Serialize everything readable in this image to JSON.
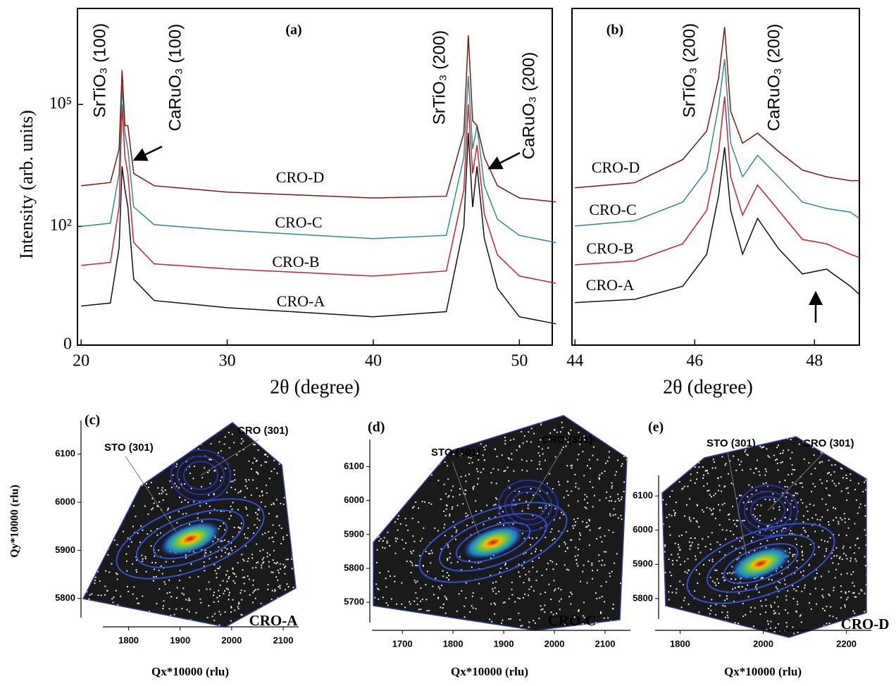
{
  "chart_data": [
    {
      "type": "line",
      "panel_label": "(a)",
      "xlabel": "2θ (degree)",
      "ylabel": "Intensity (arb. units)",
      "log_scale": true,
      "xlim": [
        19.75,
        52.25
      ],
      "xticks": [
        20,
        30,
        40,
        50
      ],
      "ylim": [
        0.12,
        23000000
      ],
      "yticks": [
        {
          "value": 0.12,
          "label": "0"
        },
        {
          "value": 100,
          "label": "10²"
        },
        {
          "value": 100000,
          "label": "10⁵"
        }
      ],
      "annotations": [
        "SrTiO₃ (100)",
        "CaRuO₃ (100)",
        "SrTiO₃ (200)",
        "CaRuO₃ (200)"
      ],
      "x": [
        20,
        22,
        22.6,
        22.8,
        23.0,
        23.2,
        23.6,
        25,
        30,
        40,
        45,
        46.2,
        46.5,
        46.8,
        47.1,
        47.6,
        48.5,
        50,
        52.5
      ],
      "series": [
        {
          "name": "CRO-A",
          "color": "#111111",
          "values": [
            1.1,
            1.3,
            30,
            3000,
            800,
            300,
            5,
            1.5,
            1,
            0.6,
            0.8,
            100,
            20000,
            300,
            3000,
            50,
            3,
            0.6,
            0.4
          ]
        },
        {
          "name": "CRO-B",
          "color": "#c8232c",
          "values": [
            11,
            13,
            300,
            100000,
            5000,
            2000,
            40,
            12,
            9,
            6,
            8,
            800,
            100000,
            2000,
            10000,
            200,
            20,
            6,
            4
          ]
        },
        {
          "name": "CRO-C",
          "color": "#2f8a94",
          "values": [
            100,
            120,
            2000,
            300000,
            20000,
            8000,
            300,
            110,
            80,
            50,
            60,
            5000,
            500000,
            8000,
            30000,
            1000,
            150,
            60,
            40
          ]
        },
        {
          "name": "CRO-D",
          "color": "#7a1a12",
          "values": [
            1000,
            1200,
            8000,
            700000,
            30000,
            30000,
            2000,
            1000,
            700,
            500,
            550,
            20000,
            5000000,
            40000,
            30000,
            5000,
            1000,
            500,
            400
          ]
        }
      ]
    },
    {
      "type": "line",
      "panel_label": "(b)",
      "xlabel": "2θ (degree)",
      "log_scale": true,
      "xlim": [
        43.95,
        48.75
      ],
      "xticks": [
        44,
        46,
        48
      ],
      "ylim": [
        1,
        10000
      ],
      "annotations": [
        "SrTiO₃ (200)",
        "CaRuO₃ (200)"
      ],
      "x": [
        44,
        45,
        45.8,
        46.2,
        46.4,
        46.5,
        46.6,
        46.8,
        47.05,
        47.4,
        47.8,
        48.2,
        48.6,
        48.75
      ],
      "series": [
        {
          "name": "CRO-A",
          "color": "#111111",
          "values": [
            3.2,
            3.5,
            5,
            12,
            60,
            224,
            40,
            12,
            32,
            14,
            7,
            8,
            5,
            4
          ]
        },
        {
          "name": "CRO-B",
          "color": "#c8232c",
          "values": [
            9,
            10,
            16,
            40,
            200,
            900,
            100,
            35,
            80,
            40,
            18,
            16,
            12,
            11
          ]
        },
        {
          "name": "CRO-C",
          "color": "#2f8a94",
          "values": [
            26,
            30,
            50,
            120,
            700,
            2500,
            250,
            100,
            180,
            100,
            50,
            42,
            38,
            32
          ]
        },
        {
          "name": "CRO-D",
          "color": "#7a1a12",
          "values": [
            74,
            85,
            160,
            350,
            1500,
            6000,
            600,
            250,
            330,
            200,
            120,
            100,
            90,
            90
          ]
        }
      ]
    },
    {
      "type": "contour",
      "panel_label": "(c)",
      "sample": "CRO-A",
      "labels": [
        "STO (301)",
        "CRO (301)"
      ],
      "xlabel": "Qx*10000 (rlu)",
      "ylabel": "Qy*10000 (rlu)",
      "xlim": [
        1750,
        2130
      ],
      "xticks": [
        1800,
        1900,
        2000,
        2100
      ],
      "ylim": [
        5760,
        6170
      ],
      "yticks": [
        5800,
        5900,
        6000,
        6100
      ]
    },
    {
      "type": "contour",
      "panel_label": "(d)",
      "sample": "CRO-C",
      "labels": [
        "STO (301)",
        "CRO (301)"
      ],
      "xlabel": "Qx*10000 (rlu)",
      "xlim": [
        1640,
        2150
      ],
      "xticks": [
        1700,
        1800,
        1900,
        2000,
        2100
      ],
      "ylim": [
        5640,
        6180
      ],
      "yticks": [
        5700,
        5800,
        5900,
        6000,
        6100
      ]
    },
    {
      "type": "contour",
      "panel_label": "(e)",
      "sample": "CRO-D",
      "labels": [
        "STO (301)",
        "CRO (301)"
      ],
      "xlabel": "Qx*10000 (rlu)",
      "xlim": [
        1740,
        2260
      ],
      "xticks": [
        1800,
        2000,
        2200
      ],
      "ylim": [
        5740,
        6160
      ],
      "yticks": [
        5800,
        5900,
        6000,
        6100
      ]
    }
  ]
}
